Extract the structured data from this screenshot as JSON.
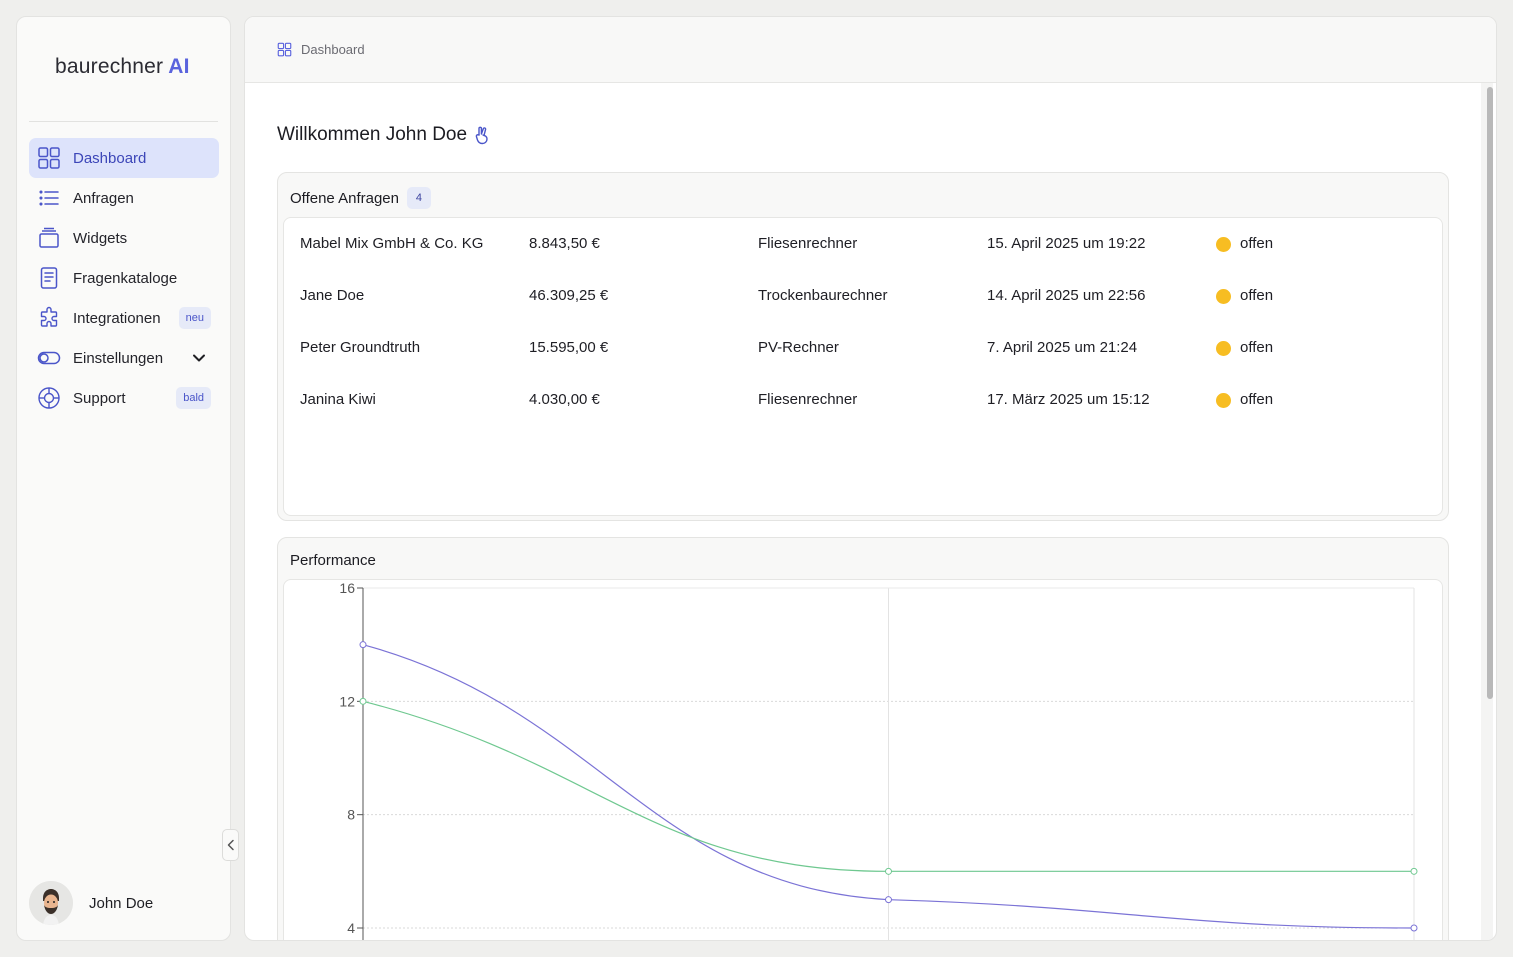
{
  "brand": {
    "name": "baurechner",
    "suffix": "AI",
    "accent": "#5a63dd"
  },
  "sidebar": {
    "items": [
      {
        "label": "Dashboard",
        "icon": "grid-icon",
        "active": true
      },
      {
        "label": "Anfragen",
        "icon": "list-icon"
      },
      {
        "label": "Widgets",
        "icon": "layers-icon"
      },
      {
        "label": "Fragenkataloge",
        "icon": "document-icon"
      },
      {
        "label": "Integrationen",
        "icon": "puzzle-icon",
        "badge": "neu"
      },
      {
        "label": "Einstellungen",
        "icon": "toggle-icon",
        "expandable": true
      },
      {
        "label": "Support",
        "icon": "lifebuoy-icon",
        "badge": "bald"
      }
    ],
    "user": {
      "name": "John Doe"
    }
  },
  "breadcrumb": {
    "label": "Dashboard"
  },
  "welcome": {
    "text": "Willkommen John Doe"
  },
  "requests": {
    "title": "Offene Anfragen",
    "count": "4",
    "status_color": "#f7bd22",
    "rows": [
      {
        "name": "Mabel Mix GmbH & Co. KG",
        "amount": "8.843,50 €",
        "calculator": "Fliesenrechner",
        "date": "15. April 2025 um 19:22",
        "status": "offen"
      },
      {
        "name": "Jane Doe",
        "amount": "46.309,25 €",
        "calculator": "Trockenbaurechner",
        "date": "14. April 2025 um 22:56",
        "status": "offen"
      },
      {
        "name": "Peter Groundtruth",
        "amount": "15.595,00 €",
        "calculator": "PV-Rechner",
        "date": "7. April 2025 um 21:24",
        "status": "offen"
      },
      {
        "name": "Janina Kiwi",
        "amount": "4.030,00 €",
        "calculator": "Fliesenrechner",
        "date": "17. März 2025 um 15:12",
        "status": "offen"
      }
    ]
  },
  "performance": {
    "title": "Performance"
  },
  "chart_data": {
    "type": "line",
    "title": "",
    "xlabel": "",
    "ylabel": "",
    "x": [
      0,
      1,
      2
    ],
    "ylim": [
      4,
      16
    ],
    "yticks": [
      4,
      8,
      12,
      16
    ],
    "grid": true,
    "series": [
      {
        "values": [
          14,
          5,
          4
        ],
        "color": "#7b73d6"
      },
      {
        "values": [
          12,
          6,
          6
        ],
        "color": "#6fc890"
      }
    ]
  }
}
